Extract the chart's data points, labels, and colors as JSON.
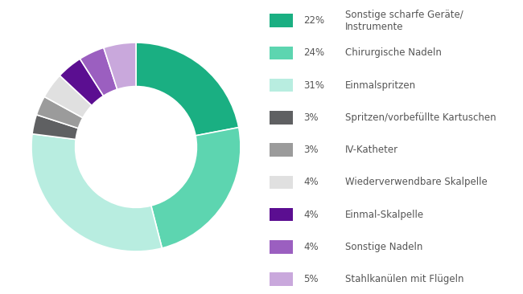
{
  "slices": [
    {
      "label": "Sonstige scharfe Geräte/\nInstrumente",
      "pct_label": "22%",
      "pct": 22,
      "color": "#1aaf82"
    },
    {
      "label": "Chirurgische Nadeln",
      "pct_label": "24%",
      "pct": 24,
      "color": "#5dd5b0"
    },
    {
      "label": "Einmalspritzen",
      "pct_label": "31%",
      "pct": 31,
      "color": "#b8ede0"
    },
    {
      "label": "Spritzen/vorbefüllte Kartuschen",
      "pct_label": "3%",
      "pct": 3,
      "color": "#5f6062"
    },
    {
      "label": "IV-Katheter",
      "pct_label": "3%",
      "pct": 3,
      "color": "#9b9b9b"
    },
    {
      "label": "Wiederverwendbare Skalpelle",
      "pct_label": "4%",
      "pct": 4,
      "color": "#e0e0e0"
    },
    {
      "label": "Einmal-Skalpelle",
      "pct_label": "4%",
      "pct": 4,
      "color": "#5b0e91"
    },
    {
      "label": "Sonstige Nadeln",
      "pct_label": "4%",
      "pct": 4,
      "color": "#9b5fc0"
    },
    {
      "label": "Stahlkanülen mit Flügeln",
      "pct_label": "5%",
      "pct": 5,
      "color": "#c9a8dc"
    }
  ],
  "bg_color": "#ffffff",
  "text_color": "#555555",
  "startangle": 90,
  "donut_width": 0.42
}
